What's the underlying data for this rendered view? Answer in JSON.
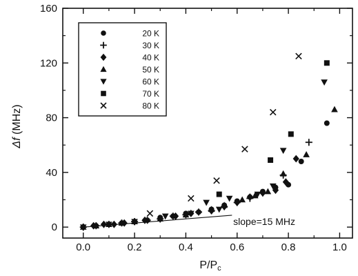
{
  "chart_data": {
    "type": "scatter",
    "xlabel": "P/P",
    "xlabel_sub": "c",
    "ylabel_italic": "Δf",
    "ylabel_unit": " (MHz)",
    "xlim": [
      -0.08,
      1.05
    ],
    "ylim": [
      -8,
      160
    ],
    "x_ticks": [
      0.0,
      0.2,
      0.4,
      0.6,
      0.8,
      1.0
    ],
    "x_tick_labels": [
      "0.0",
      "0.2",
      "0.4",
      "0.6",
      "0.8",
      "1.0"
    ],
    "y_ticks": [
      0,
      40,
      80,
      120,
      160
    ],
    "y_tick_labels": [
      "0",
      "40",
      "80",
      "120",
      "160"
    ],
    "x_minor_step": 0.1,
    "y_minor_step": 20,
    "grid": false,
    "legend_position": "top-left",
    "annotation": {
      "text": "slope=15 MHz",
      "line": {
        "x": [
          0.0,
          0.58
        ],
        "y": [
          0.0,
          8.7
        ]
      },
      "label_at": {
        "x": 0.585,
        "y": 4
      }
    },
    "series": [
      {
        "name": "20 K",
        "marker": "circle",
        "x": [
          0.0,
          0.05,
          0.1,
          0.15,
          0.2,
          0.25,
          0.3,
          0.35,
          0.4,
          0.45,
          0.5,
          0.55,
          0.6,
          0.65,
          0.7,
          0.75,
          0.8,
          0.85,
          0.95
        ],
        "y": [
          0,
          1,
          2,
          3,
          4,
          5,
          7,
          8,
          10,
          11,
          13,
          16,
          19,
          22,
          26,
          29,
          31,
          48,
          76
        ]
      },
      {
        "name": "30 K",
        "marker": "plus",
        "x": [
          0.0,
          0.05,
          0.1,
          0.15,
          0.2,
          0.25,
          0.3,
          0.35,
          0.4,
          0.45,
          0.5,
          0.55,
          0.6,
          0.65,
          0.7,
          0.78,
          0.88
        ],
        "y": [
          0,
          1,
          2,
          3,
          4,
          5,
          6,
          8,
          9,
          11,
          12,
          15,
          18,
          21,
          25,
          38,
          62
        ]
      },
      {
        "name": "40 K",
        "marker": "diamond",
        "x": [
          0.0,
          0.04,
          0.08,
          0.12,
          0.16,
          0.2,
          0.24,
          0.3,
          0.36,
          0.42,
          0.5,
          0.55,
          0.6,
          0.65,
          0.7,
          0.75,
          0.79,
          0.83
        ],
        "y": [
          0,
          1,
          2,
          2,
          3,
          4,
          5,
          6,
          8,
          10,
          12,
          15,
          18,
          22,
          25,
          27,
          33,
          50
        ]
      },
      {
        "name": "50 K",
        "marker": "triangle-up",
        "x": [
          0.0,
          0.05,
          0.1,
          0.15,
          0.2,
          0.3,
          0.4,
          0.5,
          0.55,
          0.62,
          0.67,
          0.72,
          0.78,
          0.87,
          0.98
        ],
        "y": [
          0,
          1,
          2,
          3,
          4,
          6,
          9,
          13,
          16,
          20,
          23,
          26,
          39,
          53,
          86
        ]
      },
      {
        "name": "60 K",
        "marker": "triangle-down",
        "x": [
          0.0,
          0.1,
          0.2,
          0.32,
          0.42,
          0.48,
          0.53,
          0.57,
          0.68,
          0.74,
          0.78,
          0.94
        ],
        "y": [
          0,
          2,
          4,
          8,
          10,
          18,
          13,
          21,
          24,
          30,
          56,
          106
        ]
      },
      {
        "name": "70 K",
        "marker": "square",
        "x": [
          0.53,
          0.73,
          0.81,
          0.95
        ],
        "y": [
          24,
          49,
          68,
          120
        ]
      },
      {
        "name": "80 K",
        "marker": "cross",
        "x": [
          0.26,
          0.42,
          0.52,
          0.63,
          0.74,
          0.84
        ],
        "y": [
          10,
          21,
          34,
          57,
          84,
          125
        ]
      }
    ]
  }
}
